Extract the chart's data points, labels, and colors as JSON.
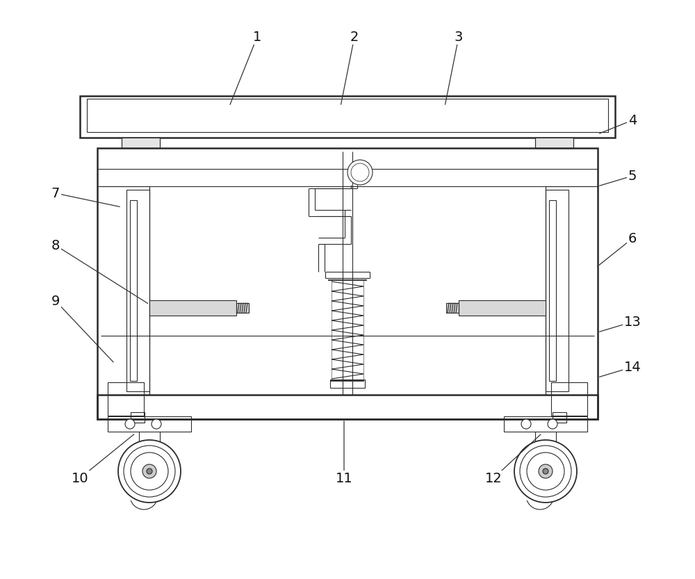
{
  "bg_color": "#ffffff",
  "lc": "#2a2a2a",
  "lw": 1.3,
  "lw_thin": 0.8,
  "lw_thick": 1.8,
  "fig_width": 10.0,
  "fig_height": 8.33
}
